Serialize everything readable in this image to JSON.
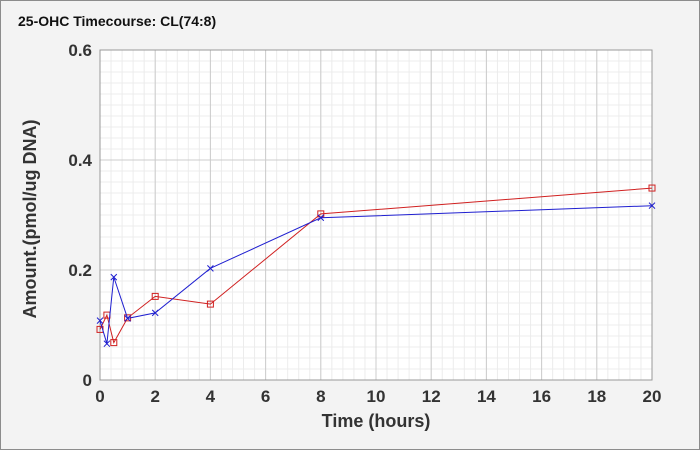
{
  "chart_data": {
    "type": "line",
    "title": "25-OHC Timecourse: CL(74:8)",
    "xlabel": "Time (hours)",
    "ylabel": "Amount.(pmol/ug DNA)",
    "xlim": [
      0,
      20
    ],
    "ylim": [
      0,
      0.6
    ],
    "x_ticks": [
      "0",
      "2",
      "4",
      "6",
      "8",
      "10",
      "12",
      "14",
      "16",
      "18",
      "20"
    ],
    "y_ticks": [
      "0",
      "0.2",
      "0.4",
      "0.6"
    ],
    "grid": true,
    "series": [
      {
        "color": "#d02020",
        "marker": "square",
        "x": [
          0,
          0.25,
          0.5,
          1,
          2,
          4,
          8,
          20
        ],
        "values": [
          0.092,
          0.118,
          0.068,
          0.113,
          0.152,
          0.138,
          0.302,
          0.349
        ]
      },
      {
        "color": "#1f1fd0",
        "marker": "x",
        "x": [
          0,
          0.25,
          0.5,
          1,
          2,
          4,
          8,
          20
        ],
        "values": [
          0.108,
          0.066,
          0.187,
          0.112,
          0.122,
          0.203,
          0.295,
          0.317
        ]
      }
    ]
  }
}
